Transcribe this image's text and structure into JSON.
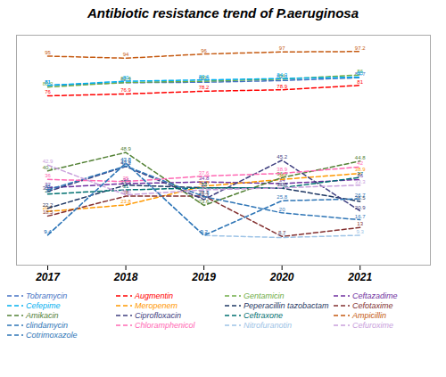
{
  "chart_data": {
    "type": "line",
    "title": "Antibiotic resistance trend of P.aeruginosa",
    "x": [
      2017,
      2018,
      2019,
      2020,
      2021
    ],
    "series": [
      {
        "name": "Tobramycin",
        "color": "#4472C4",
        "values": [
          81,
          82.3,
          82.5,
          83.3,
          84.7
        ]
      },
      {
        "name": "Augmentin",
        "color": "#FF0000",
        "values": [
          76,
          76.9,
          78.2,
          78.9,
          81
        ]
      },
      {
        "name": "Gentamicin",
        "color": "#70AD47",
        "values": [
          80.2,
          82.4,
          83,
          84,
          86
        ]
      },
      {
        "name": "Ceftazadime",
        "color": "#7030A0",
        "values": [
          32,
          34,
          34.8,
          34,
          36
        ]
      },
      {
        "name": "Cefepime",
        "color": "#00B0F0",
        "values": [
          81,
          83,
          83.6,
          84.3,
          85
        ]
      },
      {
        "name": "Meropenem",
        "color": "#FF9900",
        "values": [
          20.7,
          23.8,
          32.8,
          36,
          38.9
        ]
      },
      {
        "name": "Peperacillin tazobactam",
        "color": "#1F3864",
        "values": [
          22.2,
          33.3,
          32,
          31.8,
          25.5
        ]
      },
      {
        "name": "Cefotaxime",
        "color": "#833030",
        "values": [
          18.5,
          28,
          28.1,
          8.7,
          13
        ]
      },
      {
        "name": "Amikacin",
        "color": "#538135",
        "values": [
          40.1,
          48.9,
          23.6,
          36.9,
          44.8
        ]
      },
      {
        "name": "Ciprofloxacin",
        "color": "#404080",
        "values": [
          30.2,
          42.2,
          26.4,
          45.2,
          20.9
        ]
      },
      {
        "name": "Ceftraxone",
        "color": "#007070",
        "values": [
          29,
          31,
          32,
          32,
          37
        ]
      },
      {
        "name": "Ampicillin",
        "color": "#C55A11",
        "values": [
          95,
          94,
          96,
          97,
          97.2
        ]
      },
      {
        "name": "clindamycin",
        "color": "#2E75B6",
        "values": [
          31,
          42.4,
          27.8,
          20,
          16.7
        ]
      },
      {
        "name": "Chloramphenicol",
        "color": "#FF69B4",
        "values": [
          36,
          35,
          37.6,
          38.9,
          42
        ]
      },
      {
        "name": "Nitrofuranotin",
        "color": "#9DC3E6",
        "values": [
          9.4,
          43.8,
          9.2,
          8.2,
          9.3
        ]
      },
      {
        "name": "Cefuroxime",
        "color": "#C9A0DC",
        "values": [
          42.9,
          28.6,
          31,
          32,
          33.3
        ]
      },
      {
        "name": "Cotrimoxazole",
        "color": "#2E75B6",
        "values": [
          9.4,
          43.8,
          9.2,
          25.8,
          26.7
        ]
      }
    ],
    "xlim": [
      2016.6,
      2021.9
    ],
    "xticks": [
      2017,
      2018,
      2019,
      2020,
      2021
    ],
    "ylim": [
      -5,
      105
    ],
    "line_style": "dashed",
    "data_labels": true,
    "tick_labels": "x",
    "grid": false,
    "legend": "bottom"
  }
}
